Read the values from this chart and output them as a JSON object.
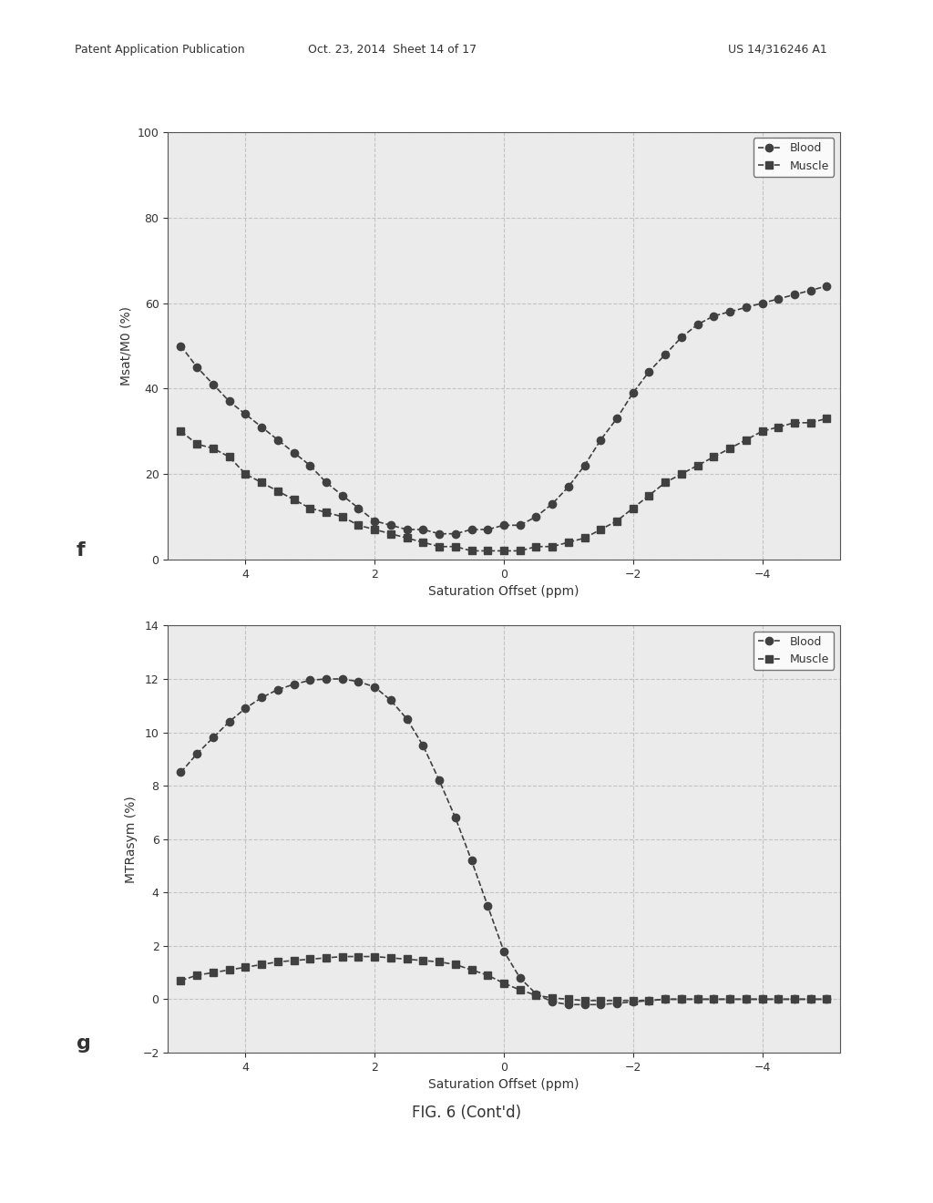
{
  "header_left": "Patent Application Publication",
  "header_center": "Oct. 23, 2014  Sheet 14 of 17",
  "header_right": "US 14/316246 A1",
  "caption": "FIG. 6 (Cont'd)",
  "plot_f": {
    "label": "f",
    "x_data": [
      5.0,
      4.75,
      4.5,
      4.25,
      4.0,
      3.75,
      3.5,
      3.25,
      3.0,
      2.75,
      2.5,
      2.25,
      2.0,
      1.75,
      1.5,
      1.25,
      1.0,
      0.75,
      0.5,
      0.25,
      0.0,
      -0.25,
      -0.5,
      -0.75,
      -1.0,
      -1.25,
      -1.5,
      -1.75,
      -2.0,
      -2.25,
      -2.5,
      -2.75,
      -3.0,
      -3.25,
      -3.5,
      -3.75,
      -4.0,
      -4.25,
      -4.5,
      -4.75,
      -5.0
    ],
    "blood_y": [
      50,
      45,
      41,
      37,
      34,
      31,
      28,
      25,
      22,
      18,
      15,
      12,
      9,
      8,
      7,
      7,
      6,
      6,
      7,
      7,
      8,
      8,
      10,
      13,
      17,
      22,
      28,
      33,
      39,
      44,
      48,
      52,
      55,
      57,
      58,
      59,
      60,
      61,
      62,
      63,
      64
    ],
    "muscle_y": [
      30,
      27,
      26,
      24,
      20,
      18,
      16,
      14,
      12,
      11,
      10,
      8,
      7,
      6,
      5,
      4,
      3,
      3,
      2,
      2,
      2,
      2,
      3,
      3,
      4,
      5,
      7,
      9,
      12,
      15,
      18,
      20,
      22,
      24,
      26,
      28,
      30,
      31,
      32,
      32,
      33
    ],
    "xlabel": "Saturation Offset (ppm)",
    "ylabel": "Msat/M0 (%)",
    "ylim": [
      0,
      100
    ],
    "yticks": [
      0,
      20,
      40,
      60,
      80,
      100
    ],
    "xlim": [
      5.2,
      -5.2
    ],
    "xticks": [
      4,
      2,
      0,
      -2,
      -4
    ]
  },
  "plot_g": {
    "label": "g",
    "x_data": [
      5.0,
      4.75,
      4.5,
      4.25,
      4.0,
      3.75,
      3.5,
      3.25,
      3.0,
      2.75,
      2.5,
      2.25,
      2.0,
      1.75,
      1.5,
      1.25,
      1.0,
      0.75,
      0.5,
      0.25,
      0.0,
      -0.25,
      -0.5,
      -0.75,
      -1.0,
      -1.25,
      -1.5,
      -1.75,
      -2.0,
      -2.25,
      -2.5,
      -2.75,
      -3.0,
      -3.25,
      -3.5,
      -3.75,
      -4.0,
      -4.25,
      -4.5,
      -4.75,
      -5.0
    ],
    "blood_y": [
      8.5,
      9.2,
      9.8,
      10.4,
      10.9,
      11.3,
      11.6,
      11.8,
      11.95,
      12.0,
      12.0,
      11.9,
      11.7,
      11.2,
      10.5,
      9.5,
      8.2,
      6.8,
      5.2,
      3.5,
      1.8,
      0.8,
      0.2,
      -0.1,
      -0.2,
      -0.2,
      -0.2,
      -0.15,
      -0.1,
      -0.05,
      0.0,
      0.0,
      0.0,
      0.0,
      0.0,
      0.0,
      0.0,
      0.0,
      0.0,
      0.0,
      0.0
    ],
    "muscle_y": [
      0.7,
      0.9,
      1.0,
      1.1,
      1.2,
      1.3,
      1.4,
      1.45,
      1.5,
      1.55,
      1.6,
      1.6,
      1.6,
      1.55,
      1.5,
      1.45,
      1.4,
      1.3,
      1.1,
      0.9,
      0.6,
      0.35,
      0.15,
      0.05,
      0.0,
      -0.05,
      -0.05,
      -0.05,
      -0.05,
      -0.05,
      0.0,
      0.0,
      0.0,
      0.0,
      0.0,
      0.0,
      0.0,
      0.0,
      0.0,
      0.0,
      0.0
    ],
    "xlabel": "Saturation Offset (ppm)",
    "ylabel": "MTRasym (%)",
    "ylim": [
      -2,
      14
    ],
    "yticks": [
      -2,
      0,
      2,
      4,
      6,
      8,
      10,
      12,
      14
    ],
    "xlim": [
      5.2,
      -5.2
    ],
    "xticks": [
      4,
      2,
      0,
      -2,
      -4
    ]
  },
  "line_color": "#404040",
  "blood_marker": "o",
  "muscle_marker": "s",
  "marker_size": 6,
  "grid_color": "#c0c0c0",
  "grid_style": "--",
  "background_color": "#ffffff",
  "legend_blood": "Blood",
  "legend_muscle": "Muscle"
}
